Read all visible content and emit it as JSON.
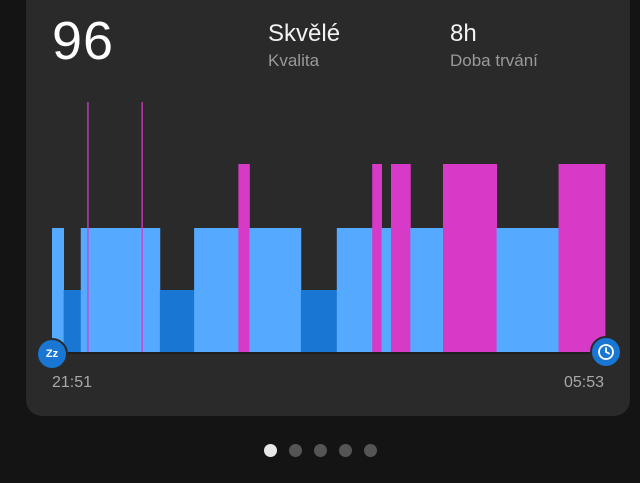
{
  "summary": {
    "score": "96",
    "quality_value": "Skvělé",
    "quality_label": "Kvalita",
    "duration_value": "8h",
    "duration_label": "Doba trvání"
  },
  "times": {
    "start": "21:51",
    "end": "05:53"
  },
  "colors": {
    "light": "#55aaff",
    "deep": "#1976d2",
    "rem": "#d63ac7",
    "awake_line": "#d63ac7"
  },
  "pager": {
    "count": 5,
    "active": 0
  },
  "chart_data": {
    "type": "bar",
    "x_start": "21:51",
    "x_end": "05:53",
    "stages": [
      "deep",
      "light",
      "rem"
    ],
    "segments": [
      {
        "from": 0.0,
        "to": 0.021,
        "stage": "light"
      },
      {
        "from": 0.021,
        "to": 0.052,
        "stage": "deep"
      },
      {
        "from": 0.052,
        "to": 0.195,
        "stage": "light"
      },
      {
        "from": 0.195,
        "to": 0.257,
        "stage": "deep"
      },
      {
        "from": 0.257,
        "to": 0.337,
        "stage": "light"
      },
      {
        "from": 0.337,
        "to": 0.357,
        "stage": "rem"
      },
      {
        "from": 0.357,
        "to": 0.45,
        "stage": "light"
      },
      {
        "from": 0.45,
        "to": 0.515,
        "stage": "deep"
      },
      {
        "from": 0.515,
        "to": 0.579,
        "stage": "light"
      },
      {
        "from": 0.579,
        "to": 0.596,
        "stage": "rem"
      },
      {
        "from": 0.596,
        "to": 0.613,
        "stage": "light"
      },
      {
        "from": 0.613,
        "to": 0.648,
        "stage": "rem"
      },
      {
        "from": 0.648,
        "to": 0.707,
        "stage": "light"
      },
      {
        "from": 0.707,
        "to": 0.804,
        "stage": "rem"
      },
      {
        "from": 0.804,
        "to": 0.916,
        "stage": "light"
      },
      {
        "from": 0.916,
        "to": 1.0,
        "stage": "rem"
      }
    ],
    "awake_marks": [
      0.065,
      0.163
    ]
  }
}
